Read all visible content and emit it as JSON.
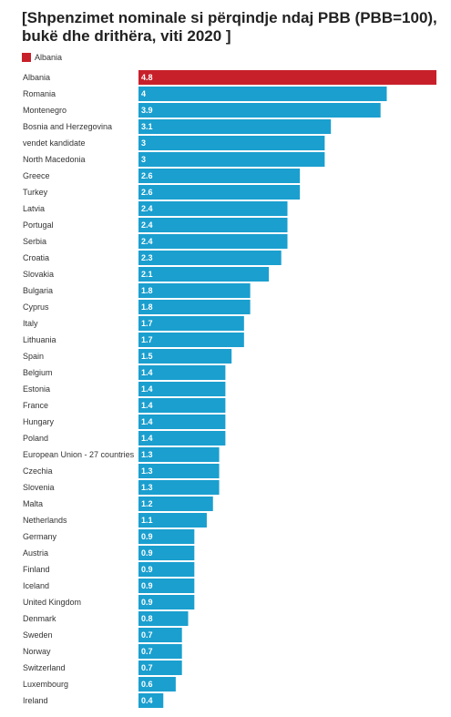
{
  "chart_data": {
    "type": "bar",
    "orientation": "horizontal",
    "title": "[Shpenzimet nominale si përqindje ndaj PBB  (PBB=100), bukë dhe drithëra, viti 2020 ]",
    "legend": {
      "position": "top-left",
      "entries": [
        {
          "label": "Albania",
          "color": "#c8202a"
        }
      ]
    },
    "xlim": [
      0,
      4.8
    ],
    "grid": false,
    "colors": {
      "highlight": "#c8202a",
      "default": "#1a9fcf"
    },
    "highlight_category": "Albania",
    "categories": [
      "Albania",
      "Romania",
      "Montenegro",
      "Bosnia and Herzegovina",
      "vendet kandidate",
      "North Macedonia",
      "Greece",
      "Turkey",
      "Latvia",
      "Portugal",
      "Serbia",
      "Croatia",
      "Slovakia",
      "Bulgaria",
      "Cyprus",
      "Italy",
      "Lithuania",
      "Spain",
      "Belgium",
      "Estonia",
      "France",
      "Hungary",
      "Poland",
      "European Union - 27 countries",
      "Czechia",
      "Slovenia",
      "Malta",
      "Netherlands",
      "Germany",
      "Austria",
      "Finland",
      "Iceland",
      "United Kingdom",
      "Denmark",
      "Sweden",
      "Norway",
      "Switzerland",
      "Luxembourg",
      "Ireland"
    ],
    "values": [
      4.8,
      4,
      3.9,
      3.1,
      3,
      3,
      2.6,
      2.6,
      2.4,
      2.4,
      2.4,
      2.3,
      2.1,
      1.8,
      1.8,
      1.7,
      1.7,
      1.5,
      1.4,
      1.4,
      1.4,
      1.4,
      1.4,
      1.3,
      1.3,
      1.3,
      1.2,
      1.1,
      0.9,
      0.9,
      0.9,
      0.9,
      0.9,
      0.8,
      0.7,
      0.7,
      0.7,
      0.6,
      0.4
    ]
  }
}
